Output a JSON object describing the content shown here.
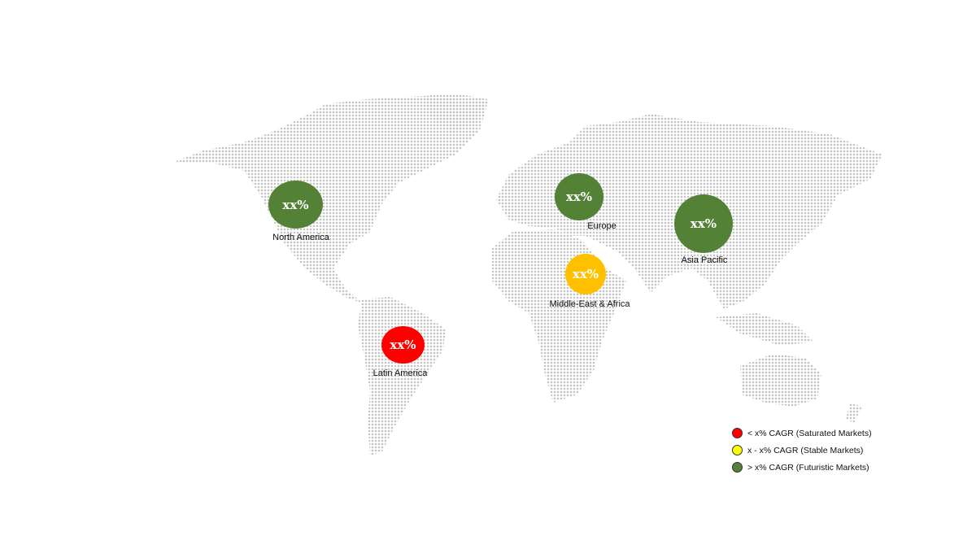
{
  "regions": [
    {
      "name": "North America",
      "value": "xx%",
      "color": "#538135"
    },
    {
      "name": "Europe",
      "value": "xx%",
      "color": "#538135"
    },
    {
      "name": "Asia Pacific",
      "value": "xx%",
      "color": "#538135"
    },
    {
      "name": "Middle-East & Africa",
      "value": "xx%",
      "color": "#ffc000"
    },
    {
      "name": "Latin America",
      "value": "xx%",
      "color": "#ff0000"
    }
  ],
  "legend": [
    {
      "label": "< x% CAGR (Saturated Markets)",
      "color": "#ff0000"
    },
    {
      "label": "x - x% CAGR (Stable Markets)",
      "color": "#ffff00"
    },
    {
      "label": "> x% CAGR (Futuristic Markets)",
      "color": "#538135"
    }
  ],
  "map_dot_color": "#c8c8c8"
}
